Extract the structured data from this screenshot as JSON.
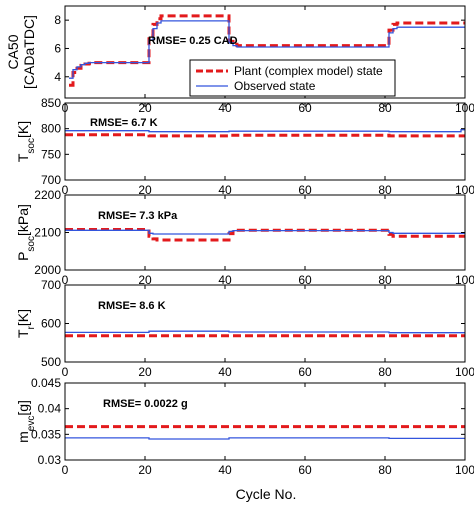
{
  "xlabel": "Cycle No.",
  "legend": {
    "location": "inside first panel, lower center",
    "items": [
      {
        "label": "Plant (complex model) state",
        "color": "#e31a1c",
        "dash": "dashed"
      },
      {
        "label": "Observed state",
        "color": "#3355dd",
        "dash": "solid"
      }
    ]
  },
  "chart_data": [
    {
      "type": "line",
      "ylabel_main": "CA50",
      "ylabel_main_sub": "",
      "ylabel_unit": "[CADaTDC]",
      "xlim": [
        0,
        100
      ],
      "ylim": [
        2.5,
        9
      ],
      "yticks": [
        4,
        6,
        8
      ],
      "xticks": [
        0,
        20,
        40,
        60,
        80,
        100
      ],
      "grid": false,
      "annotation": "RMSE= 0.25 CAD",
      "series": [
        {
          "name": "Plant (complex model) state",
          "color": "#e31a1c",
          "dash": "dashed",
          "x": [
            1,
            2,
            2,
            3,
            3,
            4,
            4,
            5,
            5,
            6,
            6,
            7,
            7,
            21,
            21,
            22,
            22,
            23,
            23,
            24,
            24,
            41,
            41,
            42,
            42,
            43,
            43,
            81,
            81,
            82,
            82,
            83,
            83,
            100
          ],
          "y": [
            3.4,
            3.4,
            4.3,
            4.3,
            4.6,
            4.6,
            4.8,
            4.8,
            4.9,
            4.9,
            4.95,
            4.95,
            5.0,
            5.0,
            6.9,
            6.9,
            7.7,
            7.7,
            8.1,
            8.1,
            8.3,
            8.3,
            6.5,
            6.5,
            6.3,
            6.3,
            6.2,
            6.2,
            7.3,
            7.3,
            7.7,
            7.7,
            7.8,
            7.8
          ]
        },
        {
          "name": "Observed state",
          "color": "#3355dd",
          "dash": "solid",
          "x": [
            1,
            2,
            2,
            3,
            3,
            4,
            4,
            5,
            5,
            6,
            6,
            7,
            7,
            21,
            21,
            22,
            22,
            23,
            23,
            24,
            24,
            41,
            41,
            42,
            42,
            43,
            43,
            81,
            81,
            82,
            82,
            83,
            83,
            100
          ],
          "y": [
            3.9,
            3.9,
            4.5,
            4.5,
            4.7,
            4.7,
            4.85,
            4.85,
            4.95,
            4.95,
            5.0,
            5.0,
            5.0,
            5.0,
            6.6,
            6.6,
            7.4,
            7.4,
            7.8,
            7.8,
            7.95,
            7.95,
            6.4,
            6.4,
            6.2,
            6.2,
            6.1,
            6.1,
            7.1,
            7.1,
            7.4,
            7.4,
            7.5,
            7.5
          ]
        }
      ]
    },
    {
      "type": "line",
      "ylabel_main": "T",
      "ylabel_main_sub": "soc",
      "ylabel_unit": "[K]",
      "xlim": [
        0,
        100
      ],
      "ylim": [
        700,
        850
      ],
      "yticks": [
        700,
        750,
        800,
        850
      ],
      "xticks": [
        0,
        20,
        40,
        60,
        80,
        100
      ],
      "grid": false,
      "annotation": "RMSE= 6.7 K",
      "series": [
        {
          "name": "Plant (complex model) state",
          "color": "#e31a1c",
          "dash": "dashed",
          "x": [
            0,
            21,
            21,
            41,
            41,
            81,
            81,
            100
          ],
          "y": [
            788,
            788,
            786,
            786,
            787,
            787,
            786,
            786
          ]
        },
        {
          "name": "Observed state",
          "color": "#3355dd",
          "dash": "solid",
          "x": [
            0,
            21,
            21,
            41,
            41,
            81,
            81,
            99,
            99,
            100
          ],
          "y": [
            796,
            796,
            794,
            794,
            795,
            795,
            794,
            794,
            798,
            798
          ]
        }
      ]
    },
    {
      "type": "line",
      "ylabel_main": "P",
      "ylabel_main_sub": "soc",
      "ylabel_unit": "[kPa]",
      "xlim": [
        0,
        100
      ],
      "ylim": [
        2000,
        2200
      ],
      "yticks": [
        2000,
        2100,
        2200
      ],
      "xticks": [
        0,
        20,
        40,
        60,
        80,
        100
      ],
      "grid": false,
      "annotation": "RMSE= 7.3 kPa",
      "series": [
        {
          "name": "Plant (complex model) state",
          "color": "#e31a1c",
          "dash": "dashed",
          "x": [
            0,
            21,
            21,
            22,
            22,
            23,
            23,
            41,
            41,
            42,
            42,
            81,
            81,
            82,
            82,
            100
          ],
          "y": [
            2108,
            2108,
            2090,
            2090,
            2083,
            2083,
            2080,
            2080,
            2097,
            2097,
            2106,
            2106,
            2095,
            2095,
            2090,
            2090
          ]
        },
        {
          "name": "Observed state",
          "color": "#3355dd",
          "dash": "solid",
          "x": [
            0,
            21,
            21,
            22,
            22,
            41,
            41,
            42,
            42,
            81,
            81,
            82,
            82,
            100
          ],
          "y": [
            2106,
            2106,
            2098,
            2098,
            2096,
            2096,
            2103,
            2103,
            2105,
            2105,
            2100,
            2100,
            2098,
            2098
          ]
        }
      ]
    },
    {
      "type": "line",
      "ylabel_main": "T",
      "ylabel_main_sub": "r",
      "ylabel_unit": "[K]",
      "xlim": [
        0,
        100
      ],
      "ylim": [
        500,
        700
      ],
      "yticks": [
        500,
        600,
        700
      ],
      "xticks": [
        0,
        20,
        40,
        60,
        80,
        100
      ],
      "grid": false,
      "annotation": "RMSE= 8.6 K",
      "series": [
        {
          "name": "Plant (complex model) state",
          "color": "#e31a1c",
          "dash": "dashed",
          "x": [
            0,
            100
          ],
          "y": [
            568,
            568
          ]
        },
        {
          "name": "Observed state",
          "color": "#3355dd",
          "dash": "solid",
          "x": [
            0,
            21,
            21,
            41,
            41,
            81,
            81,
            100
          ],
          "y": [
            577,
            577,
            580,
            580,
            578,
            578,
            576,
            576
          ]
        }
      ]
    },
    {
      "type": "line",
      "ylabel_main": "m",
      "ylabel_main_sub": "evc",
      "ylabel_unit": "[g]",
      "xlim": [
        0,
        100
      ],
      "ylim": [
        0.03,
        0.045
      ],
      "yticks": [
        0.03,
        0.035,
        0.04,
        0.045
      ],
      "xticks": [
        0,
        20,
        40,
        60,
        80,
        100
      ],
      "grid": false,
      "annotation": "RMSE= 0.0022 g",
      "series": [
        {
          "name": "Plant (complex model) state",
          "color": "#e31a1c",
          "dash": "dashed",
          "x": [
            0,
            100
          ],
          "y": [
            0.0365,
            0.0365
          ]
        },
        {
          "name": "Observed state",
          "color": "#3355dd",
          "dash": "solid",
          "x": [
            0,
            21,
            21,
            41,
            41,
            81,
            81,
            100
          ],
          "y": [
            0.0343,
            0.0343,
            0.0341,
            0.0341,
            0.0343,
            0.0343,
            0.0342,
            0.0342
          ]
        }
      ]
    }
  ]
}
